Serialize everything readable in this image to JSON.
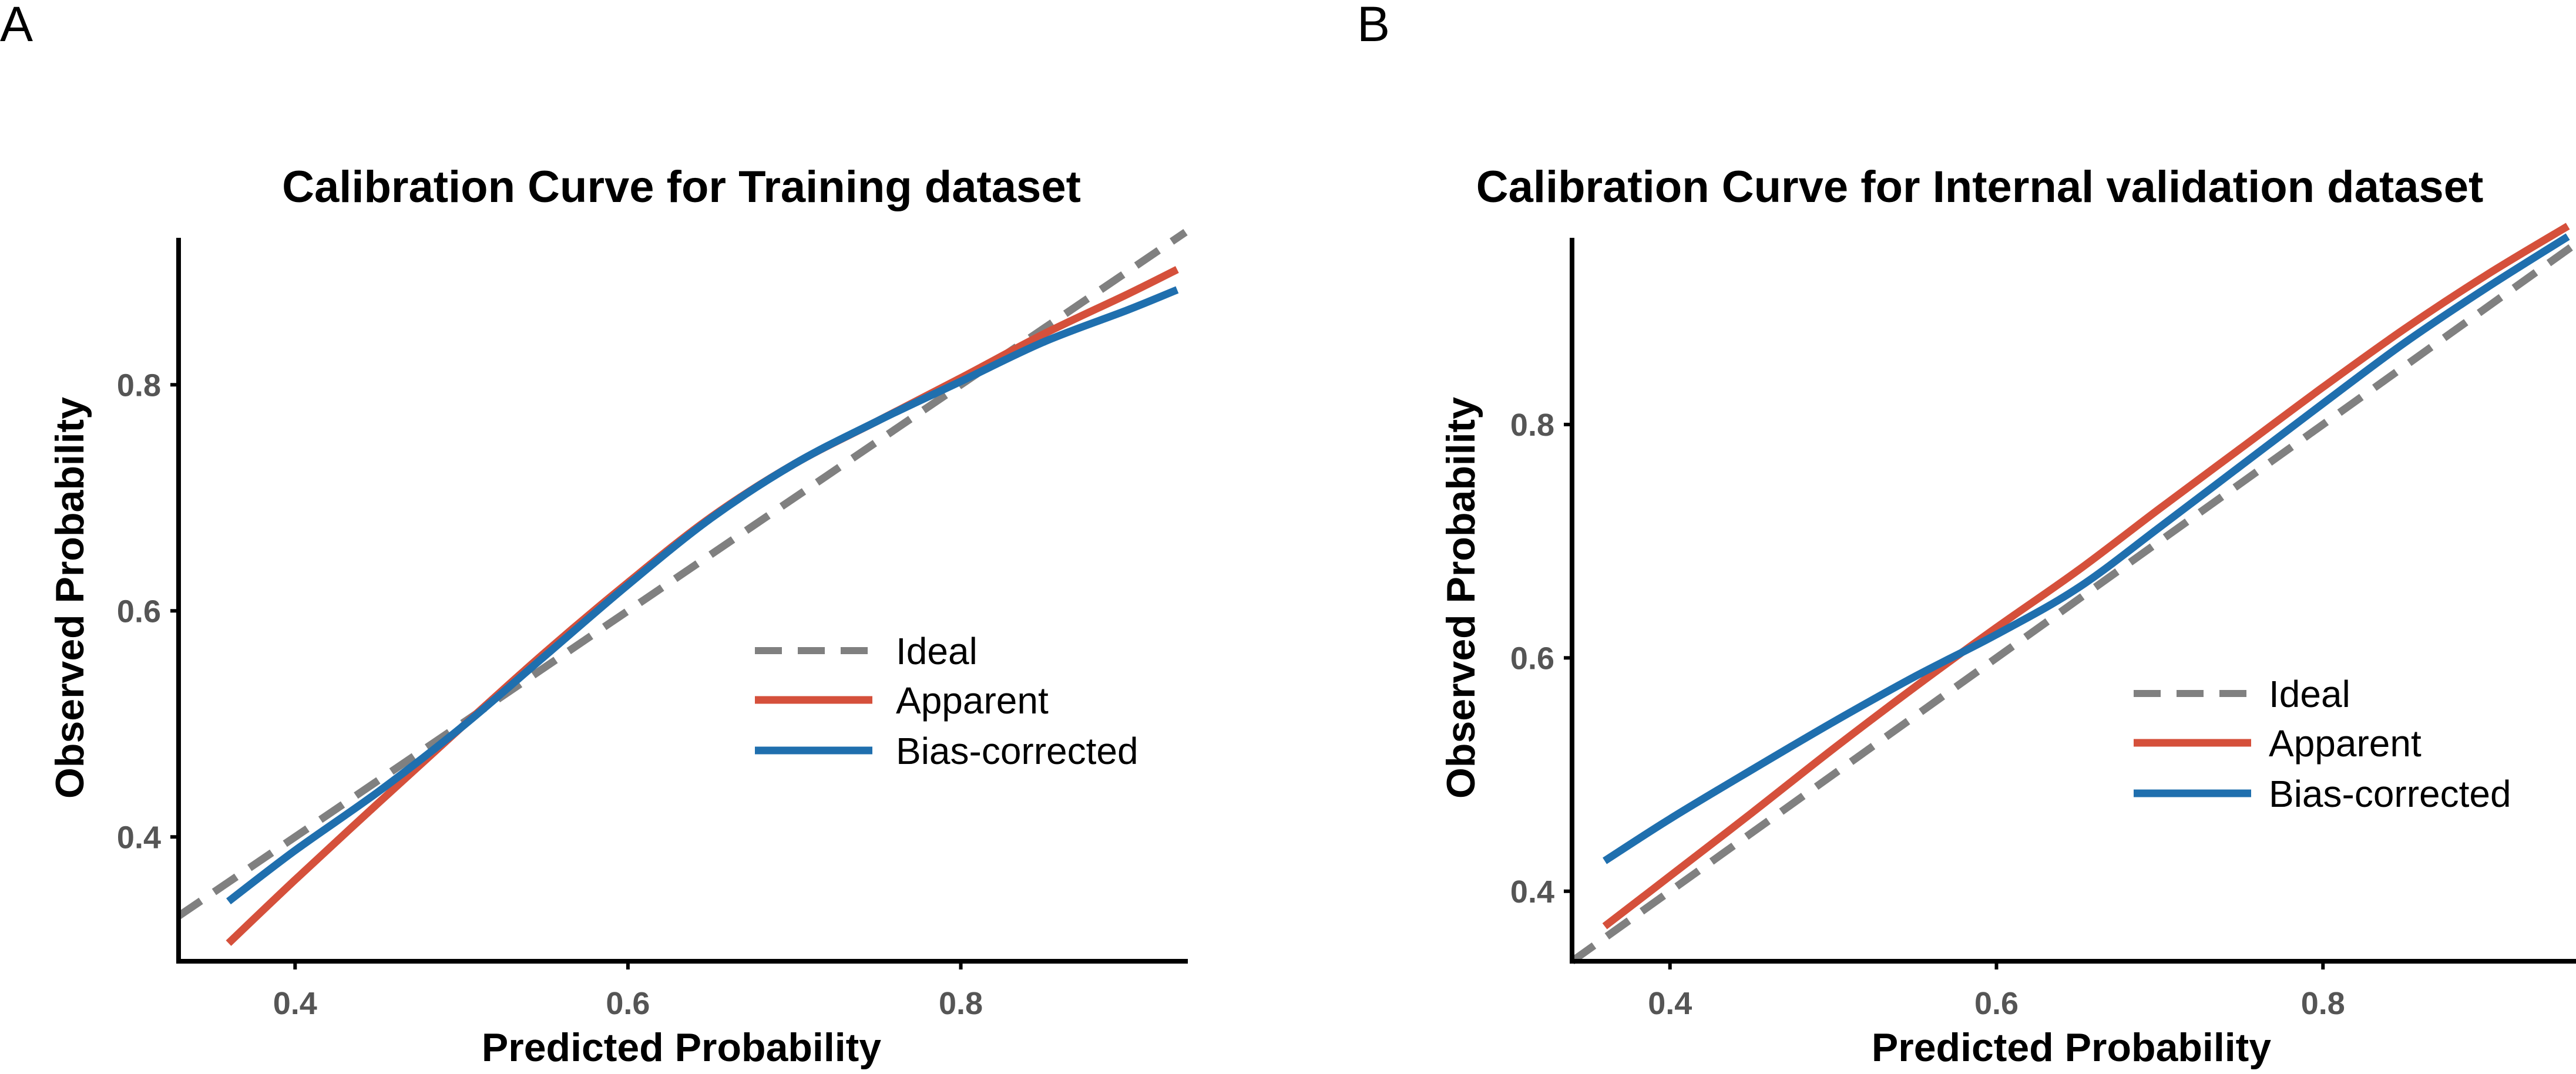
{
  "chart_data": [
    {
      "type": "line",
      "panel_label": "A",
      "title": "Calibration Curve for Training dataset",
      "xlabel": "Predicted Probability",
      "ylabel": "Observed Probability",
      "xlim": [
        0.33,
        0.935
      ],
      "ylim": [
        0.29,
        0.93
      ],
      "xticks": [
        0.4,
        0.6,
        0.8
      ],
      "yticks": [
        0.4,
        0.6,
        0.8
      ],
      "xtick_labels": [
        "0.4",
        "0.6",
        "0.8"
      ],
      "ytick_labels": [
        "0.4",
        "0.6",
        "0.8"
      ],
      "legend_position": "center-right",
      "series": [
        {
          "name": "Ideal",
          "style": "dashed",
          "color": "#808080",
          "x": [
            0.33,
            0.935
          ],
          "y": [
            0.33,
            0.935
          ]
        },
        {
          "name": "Apparent",
          "style": "solid",
          "color": "#D5503B",
          "x": [
            0.36,
            0.4,
            0.45,
            0.5,
            0.55,
            0.6,
            0.65,
            0.7,
            0.75,
            0.8,
            0.85,
            0.9,
            0.93
          ],
          "y": [
            0.306,
            0.362,
            0.43,
            0.497,
            0.563,
            0.625,
            0.683,
            0.73,
            0.768,
            0.806,
            0.845,
            0.88,
            0.902
          ]
        },
        {
          "name": "Bias-corrected",
          "style": "solid",
          "color": "#1F6FAE",
          "x": [
            0.36,
            0.4,
            0.45,
            0.5,
            0.55,
            0.6,
            0.65,
            0.7,
            0.75,
            0.8,
            0.85,
            0.9,
            0.93
          ],
          "y": [
            0.343,
            0.388,
            0.44,
            0.497,
            0.56,
            0.623,
            0.682,
            0.73,
            0.768,
            0.803,
            0.838,
            0.866,
            0.884
          ]
        }
      ]
    },
    {
      "type": "line",
      "panel_label": "B",
      "title": "Calibration Curve for Internal validation dataset",
      "xlabel": "Predicted Probability",
      "ylabel": "Observed Probability",
      "xlim": [
        0.34,
        0.955
      ],
      "ylim": [
        0.34,
        0.96
      ],
      "xticks": [
        0.4,
        0.6,
        0.8
      ],
      "yticks": [
        0.4,
        0.6,
        0.8
      ],
      "xtick_labels": [
        "0.4",
        "0.6",
        "0.8"
      ],
      "ytick_labels": [
        "0.4",
        "0.6",
        "0.8"
      ],
      "legend_position": "center-right",
      "series": [
        {
          "name": "Ideal",
          "style": "dashed",
          "color": "#808080",
          "x": [
            0.34,
            0.955
          ],
          "y": [
            0.34,
            0.955
          ]
        },
        {
          "name": "Apparent",
          "style": "solid",
          "color": "#D5503B",
          "x": [
            0.36,
            0.4,
            0.45,
            0.5,
            0.55,
            0.6,
            0.65,
            0.7,
            0.75,
            0.8,
            0.85,
            0.9,
            0.95
          ],
          "y": [
            0.37,
            0.413,
            0.467,
            0.522,
            0.575,
            0.626,
            0.675,
            0.728,
            0.78,
            0.832,
            0.882,
            0.928,
            0.97
          ]
        },
        {
          "name": "Bias-corrected",
          "style": "solid",
          "color": "#1F6FAE",
          "x": [
            0.36,
            0.4,
            0.45,
            0.5,
            0.55,
            0.6,
            0.65,
            0.7,
            0.75,
            0.8,
            0.85,
            0.9,
            0.95
          ],
          "y": [
            0.426,
            0.462,
            0.504,
            0.545,
            0.584,
            0.62,
            0.66,
            0.712,
            0.765,
            0.818,
            0.87,
            0.917,
            0.961
          ]
        }
      ]
    }
  ]
}
